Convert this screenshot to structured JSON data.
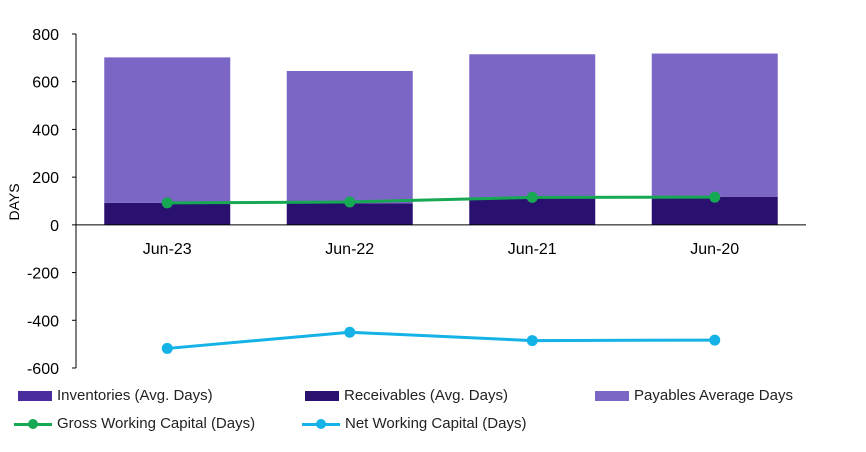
{
  "chart_data": {
    "type": "bar",
    "categories": [
      "Jun-23",
      "Jun-22",
      "Jun-21",
      "Jun-20"
    ],
    "ylabel": "DAYS",
    "ylim": [
      -600,
      800
    ],
    "yticks": [
      "800",
      "600",
      "400",
      "200",
      "0",
      "-200",
      "-400",
      "-600"
    ],
    "ytick_values": [
      800,
      600,
      400,
      200,
      0,
      -200,
      -400,
      -600
    ],
    "grid": false,
    "legend_position": "bottom",
    "series": [
      {
        "name": "Inventories (Avg. Days)",
        "kind": "bar",
        "color": "#4B2C9E",
        "values": [
          0,
          0,
          0,
          0
        ]
      },
      {
        "name": "Receivables (Avg. Days)",
        "kind": "bar",
        "color": "#2A1170",
        "values": [
          92,
          90,
          112,
          118
        ]
      },
      {
        "name": "Payables Average Days",
        "kind": "bar",
        "color": "#7B66C6",
        "values": [
          610,
          555,
          603,
          600
        ]
      },
      {
        "name": "Gross Working Capital (Days)",
        "kind": "line",
        "color": "#17A854",
        "values": [
          92,
          96,
          115,
          116
        ]
      },
      {
        "name": "Net Working Capital (Days)",
        "kind": "line",
        "color": "#14B2E6",
        "values": [
          -518,
          -450,
          -485,
          -483
        ]
      }
    ]
  },
  "legend": {
    "inventories": "Inventories (Avg. Days)",
    "receivables": "Receivables (Avg. Days)",
    "payables": "Payables Average Days",
    "gross": "Gross Working Capital (Days)",
    "net": "Net Working Capital (Days)"
  },
  "colors": {
    "inventories": "#4B2C9E",
    "receivables": "#2A1170",
    "payables": "#7B66C6",
    "gross": "#17A854",
    "net": "#14B2E6"
  }
}
